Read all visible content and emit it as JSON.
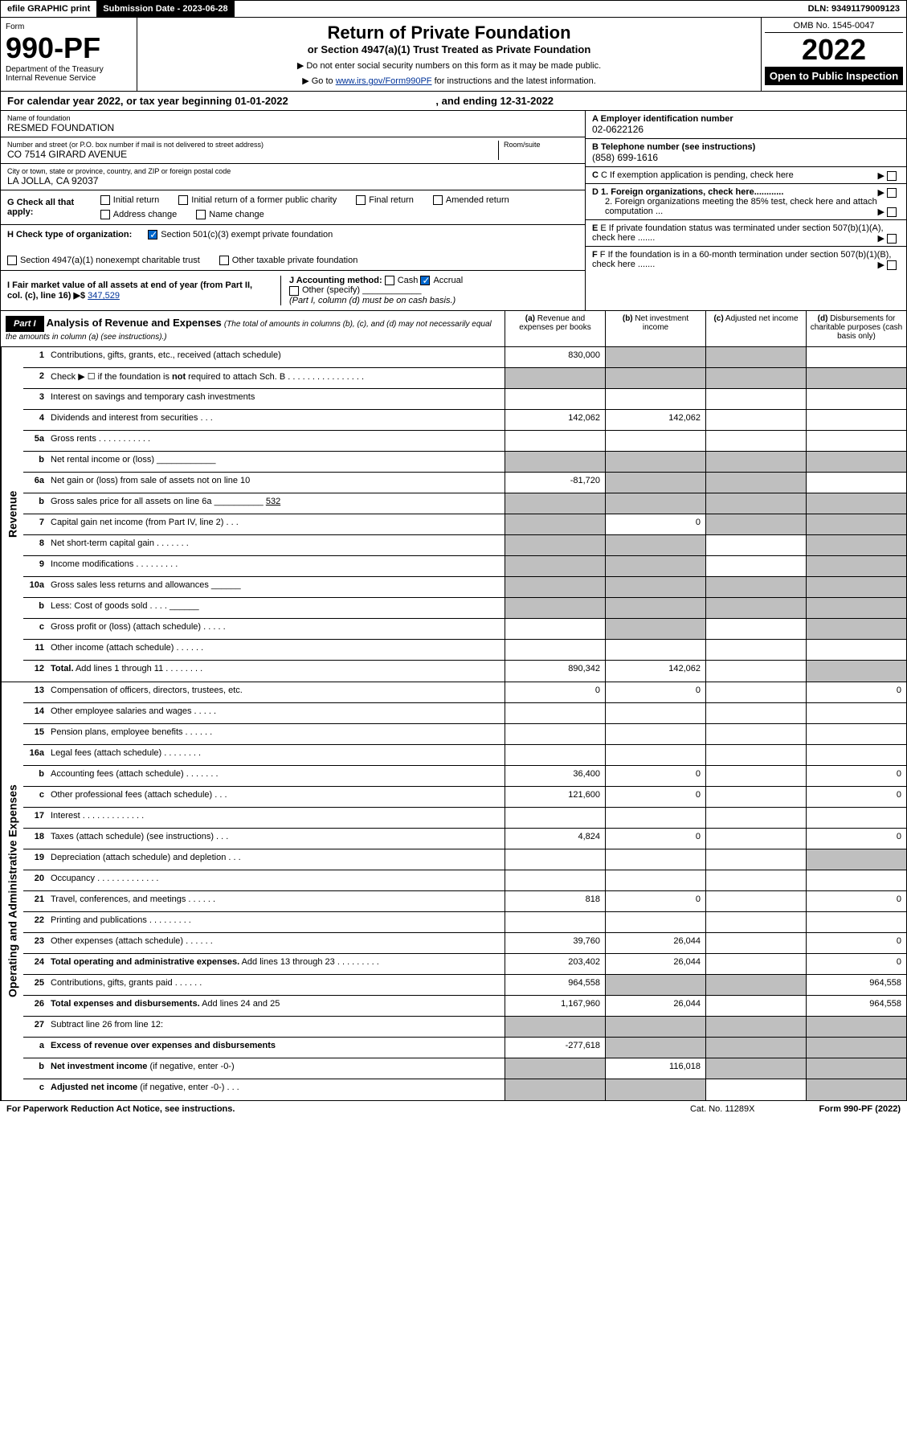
{
  "topbar": {
    "efile": "efile GRAPHIC print",
    "submission_label": "Submission Date - ",
    "submission_date": "2023-06-28",
    "dln_label": "DLN: ",
    "dln": "93491179009123"
  },
  "header": {
    "form_label": "Form",
    "form_number": "990-PF",
    "dept1": "Department of the Treasury",
    "dept2": "Internal Revenue Service",
    "title": "Return of Private Foundation",
    "subtitle": "or Section 4947(a)(1) Trust Treated as Private Foundation",
    "note1": "▶ Do not enter social security numbers on this form as it may be made public.",
    "note2_pre": "▶ Go to ",
    "note2_link": "www.irs.gov/Form990PF",
    "note2_post": " for instructions and the latest information.",
    "omb": "OMB No. 1545-0047",
    "year": "2022",
    "open_public": "Open to Public Inspection"
  },
  "cal_year": {
    "pre": "For calendar year 2022, or tax year beginning ",
    "begin": "01-01-2022",
    "mid": " , and ending ",
    "end": "12-31-2022"
  },
  "foundation": {
    "name_label": "Name of foundation",
    "name": "RESMED FOUNDATION",
    "addr_label": "Number and street (or P.O. box number if mail is not delivered to street address)",
    "addr": "CO 7514 GIRARD AVENUE",
    "room_label": "Room/suite",
    "city_label": "City or town, state or province, country, and ZIP or foreign postal code",
    "city": "LA JOLLA, CA  92037",
    "ein_label": "A Employer identification number",
    "ein": "02-0622126",
    "phone_label": "B Telephone number (see instructions)",
    "phone": "(858) 699-1616",
    "c_label": "C If exemption application is pending, check here",
    "d1_label": "D 1. Foreign organizations, check here............",
    "d2_label": "2. Foreign organizations meeting the 85% test, check here and attach computation ...",
    "e_label": "E  If private foundation status was terminated under section 507(b)(1)(A), check here .......",
    "f_label": "F  If the foundation is in a 60-month termination under section 507(b)(1)(B), check here ......."
  },
  "checks": {
    "g_label": "G Check all that apply:",
    "g_opts": [
      "Initial return",
      "Initial return of a former public charity",
      "Final return",
      "Amended return",
      "Address change",
      "Name change"
    ],
    "h_label": "H Check type of organization:",
    "h_501c3": "Section 501(c)(3) exempt private foundation",
    "h_4947": "Section 4947(a)(1) nonexempt charitable trust",
    "h_other": "Other taxable private foundation",
    "i_label": "I Fair market value of all assets at end of year (from Part II, col. (c), line 16) ▶$",
    "i_val": "347,529",
    "j_label": "J Accounting method:",
    "j_cash": "Cash",
    "j_accrual": "Accrual",
    "j_other": "Other (specify)",
    "j_note": "(Part I, column (d) must be on cash basis.)"
  },
  "part1": {
    "label": "Part I",
    "title": "Analysis of Revenue and Expenses",
    "title_note": " (The total of amounts in columns (b), (c), and (d) may not necessarily equal the amounts in column (a) (see instructions).)",
    "cols": [
      {
        "k": "a",
        "l": "Revenue and expenses per books"
      },
      {
        "k": "b",
        "l": "Net investment income"
      },
      {
        "k": "c",
        "l": "Adjusted net income"
      },
      {
        "k": "d",
        "l": "Disbursements for charitable purposes (cash basis only)"
      }
    ]
  },
  "sections": [
    {
      "side": "Revenue",
      "rows": [
        {
          "n": "1",
          "l": "Contributions, gifts, grants, etc., received (attach schedule)",
          "a": "830,000",
          "bg": [
            "",
            "c",
            "c",
            ""
          ]
        },
        {
          "n": "2",
          "l": "Check ▶ ☐ if the foundation is <b>not</b> required to attach Sch. B   .  .  .  .  .  .  .  .  .  .  .  .  .  .  .  .",
          "bg": [
            "c",
            "c",
            "c",
            "c"
          ]
        },
        {
          "n": "3",
          "l": "Interest on savings and temporary cash investments",
          "bg": [
            "",
            "",
            "",
            ""
          ]
        },
        {
          "n": "4",
          "l": "Dividends and interest from securities   .   .   .",
          "a": "142,062",
          "b": "142,062",
          "bg": [
            "",
            "",
            "",
            ""
          ]
        },
        {
          "n": "5a",
          "l": "Gross rents   .   .   .   .   .   .   .   .   .   .   .",
          "bg": [
            "",
            "",
            "",
            ""
          ]
        },
        {
          "n": "b",
          "l": "Net rental income or (loss)  ____________",
          "bg": [
            "c",
            "c",
            "c",
            "c"
          ]
        },
        {
          "n": "6a",
          "l": "Net gain or (loss) from sale of assets not on line 10",
          "a": "-81,720",
          "bg": [
            "",
            "c",
            "c",
            ""
          ]
        },
        {
          "n": "b",
          "l": "Gross sales price for all assets on line 6a __________ <u>532</u>",
          "bg": [
            "c",
            "c",
            "c",
            "c"
          ]
        },
        {
          "n": "7",
          "l": "Capital gain net income (from Part IV, line 2)   .   .   .",
          "b": "0",
          "bg": [
            "c",
            "",
            "c",
            "c"
          ]
        },
        {
          "n": "8",
          "l": "Net short-term capital gain   .   .   .   .   .   .   .",
          "bg": [
            "c",
            "c",
            "",
            "c"
          ]
        },
        {
          "n": "9",
          "l": "Income modifications  .   .   .   .   .   .   .   .   .",
          "bg": [
            "c",
            "c",
            "",
            "c"
          ]
        },
        {
          "n": "10a",
          "l": "Gross sales less returns and allowances  ______",
          "bg": [
            "c",
            "c",
            "c",
            "c"
          ]
        },
        {
          "n": "b",
          "l": "Less: Cost of goods sold    .   .   .   .  ______",
          "bg": [
            "c",
            "c",
            "c",
            "c"
          ]
        },
        {
          "n": "c",
          "l": "Gross profit or (loss) (attach schedule)    .   .   .   .   .",
          "bg": [
            "",
            "c",
            "",
            "c"
          ]
        },
        {
          "n": "11",
          "l": "Other income (attach schedule)    .   .   .   .   .   .",
          "bg": [
            "",
            "",
            "",
            ""
          ]
        },
        {
          "n": "12",
          "l": "<b>Total.</b> Add lines 1 through 11   .   .   .   .   .   .   .   .",
          "a": "890,342",
          "b": "142,062",
          "bg": [
            "",
            "",
            "",
            "c"
          ]
        }
      ]
    },
    {
      "side": "Operating and Administrative Expenses",
      "rows": [
        {
          "n": "13",
          "l": "Compensation of officers, directors, trustees, etc.",
          "a": "0",
          "b": "0",
          "d": "0",
          "bg": [
            "",
            "",
            "",
            ""
          ]
        },
        {
          "n": "14",
          "l": "Other employee salaries and wages   .   .   .   .   .",
          "bg": [
            "",
            "",
            "",
            ""
          ]
        },
        {
          "n": "15",
          "l": "Pension plans, employee benefits  .   .   .   .   .   .",
          "bg": [
            "",
            "",
            "",
            ""
          ]
        },
        {
          "n": "16a",
          "l": "Legal fees (attach schedule) .   .   .   .   .   .   .   .",
          "bg": [
            "",
            "",
            "",
            ""
          ]
        },
        {
          "n": "b",
          "l": "Accounting fees (attach schedule) .   .   .   .   .   .   .",
          "a": "36,400",
          "b": "0",
          "d": "0",
          "bg": [
            "",
            "",
            "",
            ""
          ]
        },
        {
          "n": "c",
          "l": "Other professional fees (attach schedule)    .   .   .",
          "a": "121,600",
          "b": "0",
          "d": "0",
          "bg": [
            "",
            "",
            "",
            ""
          ]
        },
        {
          "n": "17",
          "l": "Interest  .   .   .   .   .   .   .   .   .   .   .   .   .",
          "bg": [
            "",
            "",
            "",
            ""
          ]
        },
        {
          "n": "18",
          "l": "Taxes (attach schedule) (see instructions)    .   .   .",
          "a": "4,824",
          "b": "0",
          "d": "0",
          "bg": [
            "",
            "",
            "",
            ""
          ]
        },
        {
          "n": "19",
          "l": "Depreciation (attach schedule) and depletion    .   .   .",
          "bg": [
            "",
            "",
            "",
            "c"
          ]
        },
        {
          "n": "20",
          "l": "Occupancy .   .   .   .   .   .   .   .   .   .   .   .   .",
          "bg": [
            "",
            "",
            "",
            ""
          ]
        },
        {
          "n": "21",
          "l": "Travel, conferences, and meetings  .   .   .   .   .   .",
          "a": "818",
          "b": "0",
          "d": "0",
          "bg": [
            "",
            "",
            "",
            ""
          ]
        },
        {
          "n": "22",
          "l": "Printing and publications .   .   .   .   .   .   .   .   .",
          "bg": [
            "",
            "",
            "",
            ""
          ]
        },
        {
          "n": "23",
          "l": "Other expenses (attach schedule)  .   .   .   .   .   .",
          "a": "39,760",
          "b": "26,044",
          "d": "0",
          "bg": [
            "",
            "",
            "",
            ""
          ]
        },
        {
          "n": "24",
          "l": "<b>Total operating and administrative expenses.</b> Add lines 13 through 23   .   .   .   .   .   .   .   .   .",
          "a": "203,402",
          "b": "26,044",
          "d": "0",
          "bg": [
            "",
            "",
            "",
            ""
          ]
        },
        {
          "n": "25",
          "l": "Contributions, gifts, grants paid    .   .   .   .   .   .",
          "a": "964,558",
          "d": "964,558",
          "bg": [
            "",
            "c",
            "c",
            ""
          ]
        },
        {
          "n": "26",
          "l": "<b>Total expenses and disbursements.</b> Add lines 24 and 25",
          "a": "1,167,960",
          "b": "26,044",
          "d": "964,558",
          "bg": [
            "",
            "",
            "",
            ""
          ]
        },
        {
          "n": "27",
          "l": "Subtract line 26 from line 12:",
          "bg": [
            "c",
            "c",
            "c",
            "c"
          ]
        },
        {
          "n": "a",
          "l": "<b>Excess of revenue over expenses and disbursements</b>",
          "a": "-277,618",
          "bg": [
            "",
            "c",
            "c",
            "c"
          ]
        },
        {
          "n": "b",
          "l": "<b>Net investment income</b> (if negative, enter -0-)",
          "b": "116,018",
          "bg": [
            "c",
            "",
            "c",
            "c"
          ]
        },
        {
          "n": "c",
          "l": "<b>Adjusted net income</b> (if negative, enter -0-)   .   .   .",
          "bg": [
            "c",
            "c",
            "",
            "c"
          ]
        }
      ]
    }
  ],
  "footer": {
    "left": "For Paperwork Reduction Act Notice, see instructions.",
    "mid": "Cat. No. 11289X",
    "right": "Form 990-PF (2022)"
  }
}
